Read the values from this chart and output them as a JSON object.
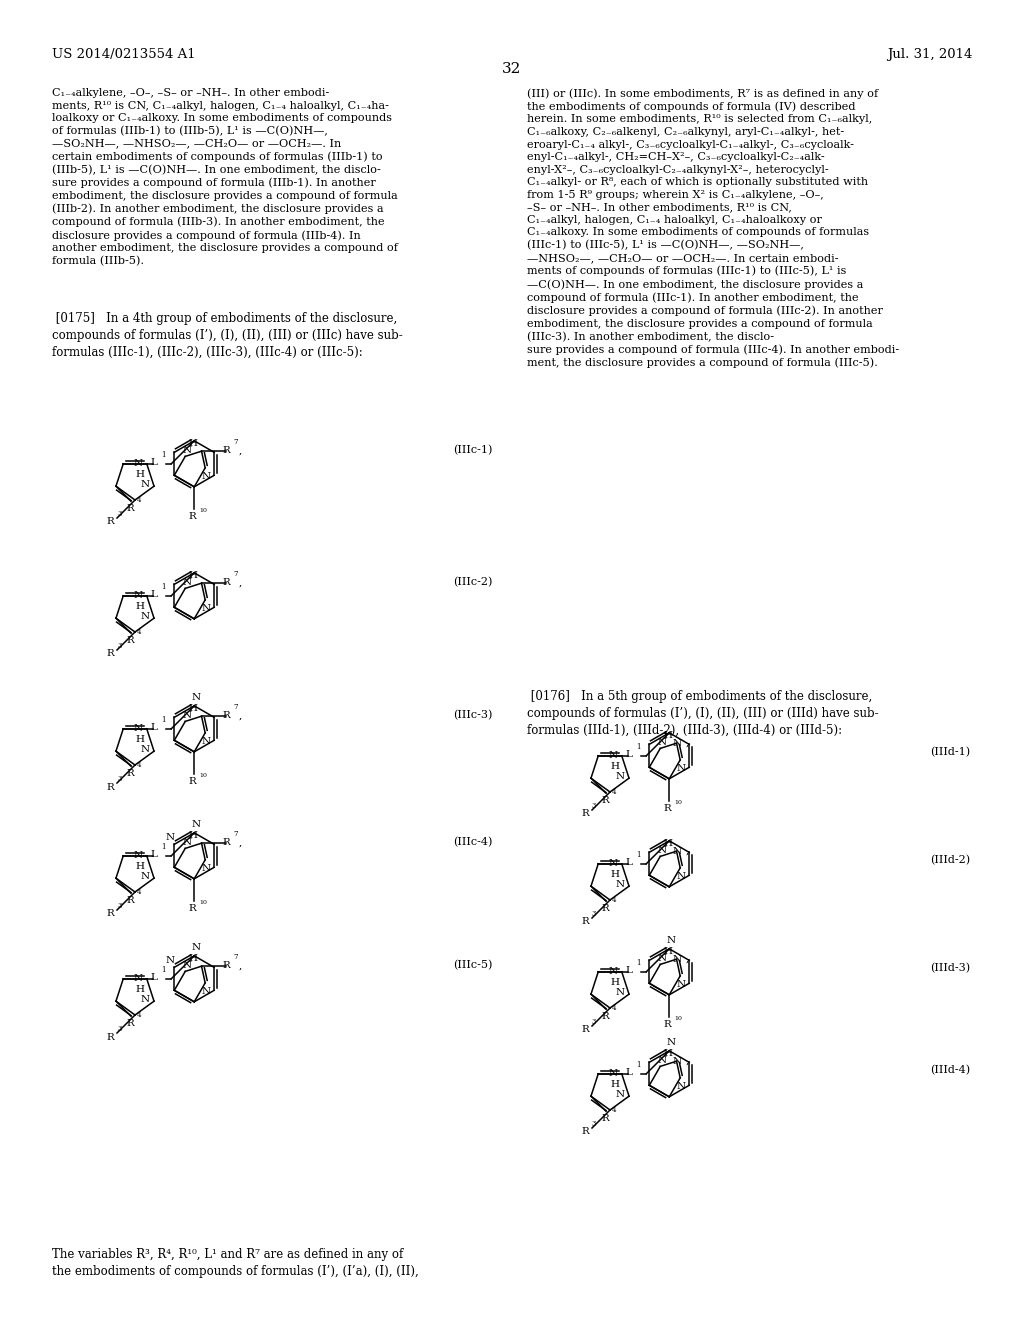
{
  "bg": "#ffffff",
  "patent_num": "US 2014/0213554 A1",
  "patent_date": "Jul. 31, 2014",
  "page_num": "32"
}
